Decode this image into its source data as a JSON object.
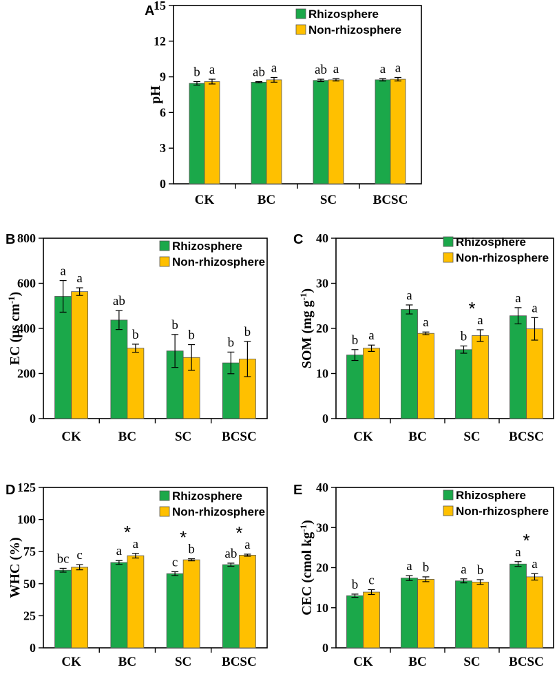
{
  "colors": {
    "rhizosphere": "#1ba84a",
    "non_rhizosphere": "#ffc000"
  },
  "chart_data": [
    {
      "panel": "A",
      "type": "bar",
      "ylabel": "pH",
      "ylim": [
        0,
        15
      ],
      "yticks": [
        "0",
        "3",
        "6",
        "9",
        "12",
        "15"
      ],
      "categories": [
        "CK",
        "BC",
        "SC",
        "BCSC"
      ],
      "series": [
        {
          "name": "Rhizosphere",
          "values": [
            8.45,
            8.55,
            8.7,
            8.75
          ],
          "errors": [
            0.15,
            0.05,
            0.1,
            0.1
          ],
          "letters": [
            "b",
            "ab",
            "ab",
            "a"
          ]
        },
        {
          "name": "Non-rhizosphere",
          "values": [
            8.6,
            8.75,
            8.75,
            8.8
          ],
          "errors": [
            0.2,
            0.2,
            0.1,
            0.15
          ],
          "letters": [
            "a",
            "a",
            "a",
            "a"
          ]
        }
      ],
      "stars": [],
      "legend": [
        "Rhizosphere",
        "Non-rhizosphere"
      ]
    },
    {
      "panel": "B",
      "type": "bar",
      "ylabel": "EC (μs cm",
      "ylabel_sup": "-1",
      "ylabel_end": ")",
      "ylim": [
        0,
        800
      ],
      "yticks": [
        "0",
        "200",
        "400",
        "600",
        "800"
      ],
      "categories": [
        "CK",
        "BC",
        "SC",
        "BCSC"
      ],
      "series": [
        {
          "name": "Rhizosphere",
          "values": [
            542,
            437,
            300,
            247
          ],
          "errors": [
            70,
            42,
            73,
            48
          ],
          "letters": [
            "a",
            "ab",
            "b",
            "b"
          ]
        },
        {
          "name": "Non-rhizosphere",
          "values": [
            563,
            312,
            271,
            264
          ],
          "errors": [
            17,
            18,
            57,
            78
          ],
          "letters": [
            "a",
            "b",
            "b",
            "b"
          ]
        }
      ],
      "stars": [],
      "legend": [
        "Rhizosphere",
        "Non-rhizosphere"
      ]
    },
    {
      "panel": "C",
      "type": "bar",
      "ylabel": "SOM (mg g",
      "ylabel_sup": "-1",
      "ylabel_end": ")",
      "ylim": [
        0,
        40
      ],
      "yticks": [
        "0",
        "10",
        "20",
        "30",
        "40"
      ],
      "categories": [
        "CK",
        "BC",
        "SC",
        "BCSC"
      ],
      "series": [
        {
          "name": "Rhizosphere",
          "values": [
            14.1,
            24.2,
            15.3,
            22.8
          ],
          "errors": [
            1.2,
            1.0,
            0.8,
            1.8
          ],
          "letters": [
            "b",
            "a",
            "b",
            "a"
          ]
        },
        {
          "name": "Non-rhizosphere",
          "values": [
            15.6,
            18.9,
            18.4,
            19.9
          ],
          "errors": [
            0.7,
            0.3,
            1.3,
            2.5
          ],
          "letters": [
            "a",
            "a",
            "a",
            "a"
          ]
        }
      ],
      "stars": [
        {
          "category": "SC",
          "symbol": "*"
        }
      ],
      "legend": [
        "Rhizosphere",
        "Non-rhizosphere"
      ]
    },
    {
      "panel": "D",
      "type": "bar",
      "ylabel": "WHC (%)",
      "ylim": [
        0,
        125
      ],
      "yticks": [
        "0",
        "25",
        "50",
        "75",
        "100",
        "125"
      ],
      "categories": [
        "CK",
        "BC",
        "SC",
        "BCSC"
      ],
      "series": [
        {
          "name": "Rhizosphere",
          "values": [
            60.5,
            66.5,
            57.8,
            64.8
          ],
          "errors": [
            1.5,
            1.5,
            1.5,
            1.2
          ],
          "letters": [
            "bc",
            "a",
            "c",
            "ab"
          ]
        },
        {
          "name": "Non-rhizosphere",
          "values": [
            62.8,
            71.8,
            68.6,
            72.2
          ],
          "errors": [
            2.0,
            1.8,
            0.8,
            0.8
          ],
          "letters": [
            "c",
            "a",
            "b",
            "a"
          ]
        }
      ],
      "stars": [
        {
          "category": "BC",
          "symbol": "*"
        },
        {
          "category": "SC",
          "symbol": "*"
        },
        {
          "category": "BCSC",
          "symbol": "*"
        }
      ],
      "legend": [
        "Rhizosphere",
        "Non-rhizosphere"
      ]
    },
    {
      "panel": "E",
      "type": "bar",
      "ylabel": "CEC (cmol kg",
      "ylabel_sup": "-1",
      "ylabel_end": ")",
      "ylim": [
        0,
        40
      ],
      "yticks": [
        "0",
        "10",
        "20",
        "30",
        "40"
      ],
      "categories": [
        "CK",
        "BC",
        "SC",
        "BCSC"
      ],
      "series": [
        {
          "name": "Rhizosphere",
          "values": [
            13.0,
            17.4,
            16.7,
            20.9
          ],
          "errors": [
            0.4,
            0.6,
            0.5,
            0.6
          ],
          "letters": [
            "b",
            "a",
            "a",
            "a"
          ]
        },
        {
          "name": "Non-rhizosphere",
          "values": [
            13.9,
            17.1,
            16.4,
            17.7
          ],
          "errors": [
            0.6,
            0.6,
            0.6,
            0.8
          ],
          "letters": [
            "c",
            "b",
            "b",
            "a"
          ]
        }
      ],
      "stars": [
        {
          "category": "BCSC",
          "symbol": "*"
        }
      ],
      "legend": [
        "Rhizosphere",
        "Non-rhizosphere"
      ]
    }
  ]
}
